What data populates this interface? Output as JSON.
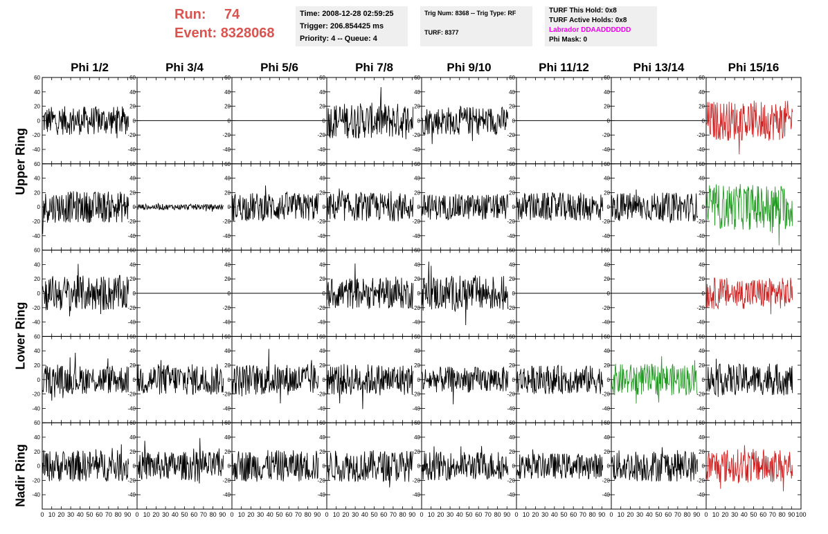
{
  "header": {
    "run_label": "Run:",
    "run_value": "74",
    "event_label": "Event:",
    "event_value": "8328068",
    "time": "Time: 2008-12-28 02:59:25",
    "trigger": "Trigger: 206.854425 ms",
    "priority": "Priority: 4 -- Queue: 4",
    "trig_num": "Trig Num: 8368 -- Trig Type: RF",
    "turf": "TURF: 8377",
    "turf_this_hold": "TURF This Hold: 0x8",
    "turf_active_holds": "TURF Active Holds: 0x8",
    "labrador": "Labrador DDAADDDDDD",
    "phi_mask": "Phi Mask: 0"
  },
  "colors": {
    "header_red": "#d9534f",
    "labrador": "#ee00ee",
    "trace_default": "#000000",
    "trace_red": "#cc2222",
    "trace_green": "#229922",
    "info_bg": "#efefef"
  },
  "columns": [
    "Phi 1/2",
    "Phi 3/4",
    "Phi 5/6",
    "Phi 7/8",
    "Phi 9/10",
    "Phi 11/12",
    "Phi 13/14",
    "Phi 15/16"
  ],
  "row_groups": [
    "Upper Ring",
    "Lower Ring",
    "Nadir Ring"
  ],
  "chart_data": {
    "type": "line",
    "title": "",
    "xlabel": "",
    "ylabel": "",
    "xlim": [
      0,
      100
    ],
    "ylim": [
      -60,
      60
    ],
    "x_ticks": [
      0,
      10,
      20,
      30,
      40,
      50,
      60,
      70,
      80,
      90,
      100
    ],
    "y_ticks": [
      -40,
      -20,
      0,
      20,
      40,
      60
    ],
    "grid": false,
    "rows": 5,
    "cols": 8,
    "panels": [
      {
        "row": 0,
        "col": 0,
        "amplitude": 20,
        "color": "black"
      },
      {
        "row": 0,
        "col": 1,
        "amplitude": 0,
        "color": "black"
      },
      {
        "row": 0,
        "col": 2,
        "amplitude": 0,
        "color": "black"
      },
      {
        "row": 0,
        "col": 3,
        "amplitude": 25,
        "color": "black"
      },
      {
        "row": 0,
        "col": 4,
        "amplitude": 20,
        "color": "black"
      },
      {
        "row": 0,
        "col": 5,
        "amplitude": 0,
        "color": "black"
      },
      {
        "row": 0,
        "col": 6,
        "amplitude": 0,
        "color": "black"
      },
      {
        "row": 0,
        "col": 7,
        "amplitude": 28,
        "color": "red"
      },
      {
        "row": 1,
        "col": 0,
        "amplitude": 22,
        "color": "black"
      },
      {
        "row": 1,
        "col": 1,
        "amplitude": 4,
        "color": "black"
      },
      {
        "row": 1,
        "col": 2,
        "amplitude": 20,
        "color": "black"
      },
      {
        "row": 1,
        "col": 3,
        "amplitude": 20,
        "color": "black"
      },
      {
        "row": 1,
        "col": 4,
        "amplitude": 18,
        "color": "black"
      },
      {
        "row": 1,
        "col": 5,
        "amplitude": 20,
        "color": "black"
      },
      {
        "row": 1,
        "col": 6,
        "amplitude": 20,
        "color": "black"
      },
      {
        "row": 1,
        "col": 7,
        "amplitude": 32,
        "color": "green"
      },
      {
        "row": 2,
        "col": 0,
        "amplitude": 25,
        "color": "black"
      },
      {
        "row": 2,
        "col": 1,
        "amplitude": 0,
        "color": "black"
      },
      {
        "row": 2,
        "col": 2,
        "amplitude": 0,
        "color": "black"
      },
      {
        "row": 2,
        "col": 3,
        "amplitude": 22,
        "color": "black"
      },
      {
        "row": 2,
        "col": 4,
        "amplitude": 25,
        "color": "black"
      },
      {
        "row": 2,
        "col": 5,
        "amplitude": 0,
        "color": "black"
      },
      {
        "row": 2,
        "col": 6,
        "amplitude": 0,
        "color": "black"
      },
      {
        "row": 2,
        "col": 7,
        "amplitude": 22,
        "color": "red"
      },
      {
        "row": 3,
        "col": 0,
        "amplitude": 20,
        "color": "black"
      },
      {
        "row": 3,
        "col": 1,
        "amplitude": 22,
        "color": "black"
      },
      {
        "row": 3,
        "col": 2,
        "amplitude": 22,
        "color": "black"
      },
      {
        "row": 3,
        "col": 3,
        "amplitude": 22,
        "color": "black"
      },
      {
        "row": 3,
        "col": 4,
        "amplitude": 18,
        "color": "black"
      },
      {
        "row": 3,
        "col": 5,
        "amplitude": 20,
        "color": "black"
      },
      {
        "row": 3,
        "col": 6,
        "amplitude": 22,
        "color": "green"
      },
      {
        "row": 3,
        "col": 7,
        "amplitude": 22,
        "color": "black"
      },
      {
        "row": 4,
        "col": 0,
        "amplitude": 22,
        "color": "black"
      },
      {
        "row": 4,
        "col": 1,
        "amplitude": 20,
        "color": "black"
      },
      {
        "row": 4,
        "col": 2,
        "amplitude": 22,
        "color": "black"
      },
      {
        "row": 4,
        "col": 3,
        "amplitude": 22,
        "color": "black"
      },
      {
        "row": 4,
        "col": 4,
        "amplitude": 20,
        "color": "black"
      },
      {
        "row": 4,
        "col": 5,
        "amplitude": 18,
        "color": "black"
      },
      {
        "row": 4,
        "col": 6,
        "amplitude": 22,
        "color": "black"
      },
      {
        "row": 4,
        "col": 7,
        "amplitude": 24,
        "color": "red"
      }
    ]
  }
}
